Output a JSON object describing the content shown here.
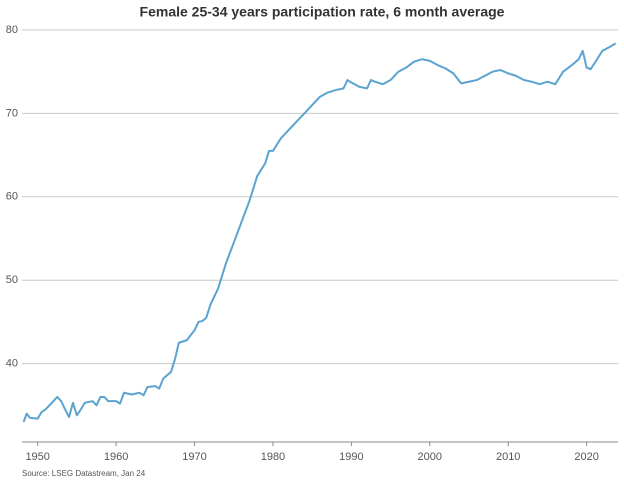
{
  "chart_data": {
    "type": "line",
    "title": "Female 25-34 years participation rate, 6 month average",
    "source": "Source: LSEG Datastream, Jan 24",
    "x": [
      1948.2,
      1948.6,
      1949,
      1950,
      1950.5,
      1951,
      1952,
      1952.5,
      1953,
      1953.5,
      1954,
      1954.5,
      1955,
      1955.5,
      1956,
      1957,
      1957.5,
      1958,
      1958.5,
      1959,
      1960,
      1960.5,
      1961,
      1962,
      1963,
      1963.5,
      1964,
      1965,
      1965.5,
      1966,
      1967,
      1967.5,
      1968,
      1969,
      1970,
      1970.5,
      1971,
      1971.5,
      1972,
      1973,
      1974,
      1975,
      1976,
      1977,
      1978,
      1979,
      1979.5,
      1980,
      1981,
      1982,
      1983,
      1984,
      1985,
      1986,
      1987,
      1988,
      1989,
      1989.5,
      1990,
      1991,
      1992,
      1992.5,
      1993,
      1994,
      1995,
      1996,
      1997,
      1998,
      1999,
      2000,
      2001,
      2002,
      2003,
      2004,
      2005,
      2006,
      2007,
      2008,
      2009,
      2010,
      2011,
      2012,
      2013,
      2014,
      2015,
      2016,
      2017,
      2018,
      2019,
      2019.5,
      2020,
      2020.5,
      2021,
      2022,
      2023,
      2023.7
    ],
    "series": [
      {
        "name": "Female 25-34 years participation rate",
        "color": "#5ba3d0",
        "values": [
          33,
          34,
          33.5,
          33.4,
          34.2,
          34.5,
          35.5,
          36,
          35.5,
          34.5,
          33.6,
          35.3,
          33.8,
          34.5,
          35.3,
          35.5,
          35,
          36,
          36,
          35.5,
          35.5,
          35.2,
          36.5,
          36.3,
          36.5,
          36.2,
          37.2,
          37.3,
          37,
          38.2,
          39,
          40.5,
          42.5,
          42.8,
          44,
          45,
          45.1,
          45.5,
          47,
          49,
          52,
          54.5,
          57,
          59.5,
          62.5,
          64,
          65.5,
          65.5,
          67,
          68,
          69,
          70,
          71,
          72,
          72.5,
          72.8,
          73,
          74,
          73.7,
          73.2,
          73,
          74,
          73.8,
          73.5,
          74,
          75,
          75.5,
          76.2,
          76.5,
          76.3,
          75.8,
          75.4,
          74.8,
          73.6,
          73.8,
          74,
          74.5,
          75,
          75.2,
          74.8,
          74.5,
          74,
          73.8,
          73.5,
          73.8,
          73.5,
          75,
          75.7,
          76.5,
          77.5,
          75.5,
          75.3,
          76,
          77.5,
          78,
          78.4
        ]
      }
    ],
    "xlim": [
      1948,
      2024
    ],
    "xticks": [
      1950,
      1960,
      1970,
      1980,
      1990,
      2000,
      2010,
      2020
    ],
    "ylim": [
      30.6,
      80
    ],
    "yticks": [
      40,
      50,
      60,
      70,
      80
    ],
    "grid": true
  }
}
